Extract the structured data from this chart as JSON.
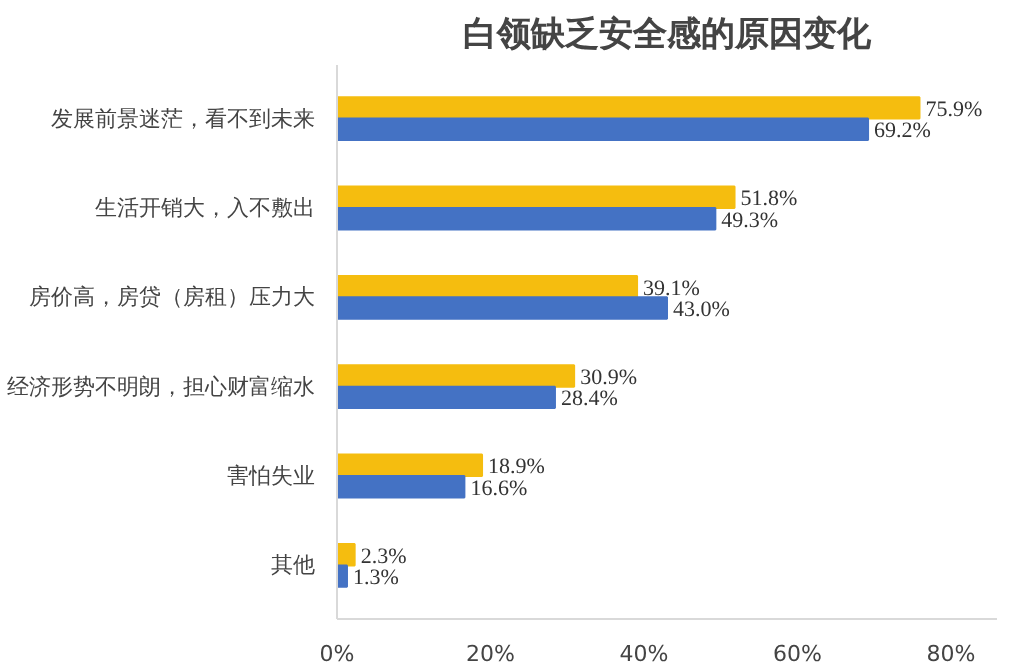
{
  "chart_data": {
    "type": "bar",
    "orientation": "horizontal",
    "title": "白领缺乏安全感的原因变化",
    "categories": [
      "发展前景迷茫，看不到未来",
      "生活开销大，入不敷出",
      "房价高，房贷（房租）压力大",
      "经济形势不明朗，担心财富缩水",
      "害怕失业",
      "其他"
    ],
    "series": [
      {
        "color": "#f5bd0f",
        "values": [
          75.9,
          51.8,
          39.1,
          30.9,
          18.9,
          2.3
        ],
        "value_labels": [
          "75.9%",
          "51.8%",
          "39.1%",
          "30.9%",
          "18.9%",
          "2.3%"
        ]
      },
      {
        "color": "#4472c4",
        "values": [
          69.2,
          49.3,
          43.0,
          28.4,
          16.6,
          1.3
        ],
        "value_labels": [
          "69.2%",
          "49.3%",
          "43.0%",
          "28.4%",
          "16.6%",
          "1.3%"
        ]
      }
    ],
    "xlim": [
      0,
      86
    ],
    "xticks": [
      {
        "value": 0,
        "label": "0%"
      },
      {
        "value": 20,
        "label": "20%"
      },
      {
        "value": 40,
        "label": "40%"
      },
      {
        "value": 60,
        "label": "60%"
      },
      {
        "value": 80,
        "label": "80%"
      }
    ],
    "grid": false
  }
}
